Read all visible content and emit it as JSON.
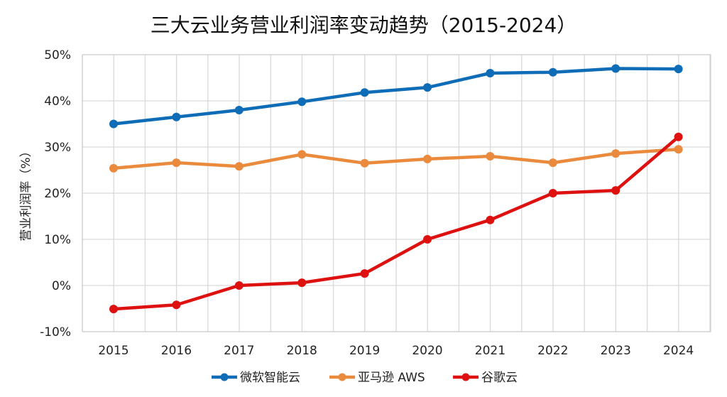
{
  "chart_data": {
    "type": "line",
    "title": "三大云业务营业利润率变动趋势（2015-2024）",
    "xlabel": "",
    "ylabel": "营业利润率（%）",
    "x": [
      "2015",
      "2016",
      "2017",
      "2018",
      "2019",
      "2020",
      "2021",
      "2022",
      "2023",
      "2024"
    ],
    "ylim": [
      -10,
      50
    ],
    "yticks": [
      -10,
      0,
      10,
      20,
      30,
      40,
      50
    ],
    "ytick_labels": [
      "-10%",
      "0%",
      "10%",
      "20%",
      "30%",
      "40%",
      "50%"
    ],
    "grid": true,
    "legend_position": "bottom",
    "series": [
      {
        "name": "微软智能云",
        "color": "#0f6cb6",
        "values": [
          35.0,
          36.5,
          38.0,
          39.8,
          41.8,
          42.9,
          46.0,
          46.2,
          47.0,
          46.9
        ]
      },
      {
        "name": "亚马逊 AWS",
        "color": "#ea8a3c",
        "values": [
          25.4,
          26.6,
          25.8,
          28.4,
          26.5,
          27.4,
          28.0,
          26.6,
          28.6,
          29.5
        ]
      },
      {
        "name": "谷歌云",
        "color": "#de1111",
        "values": [
          -5.1,
          -4.2,
          0.0,
          0.6,
          2.6,
          10.0,
          14.2,
          20.0,
          20.6,
          32.2
        ]
      }
    ]
  }
}
